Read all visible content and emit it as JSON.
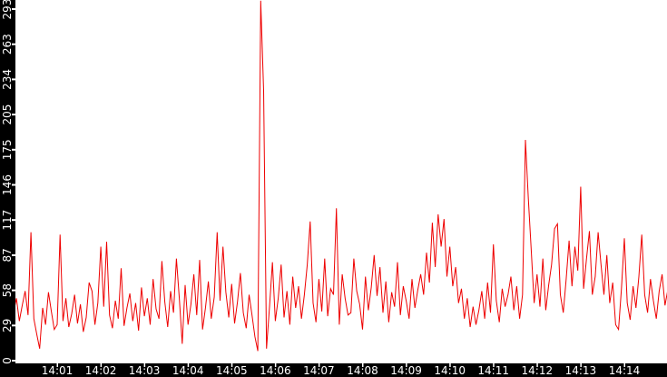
{
  "colors": {
    "plot_background": "#ffffff",
    "axis_band": "#000000",
    "tick_mark": "#ffffff",
    "tick_label": "#ffffff",
    "series_line": "#ee0000"
  },
  "chart_data": {
    "type": "line",
    "title": "",
    "xlabel": "",
    "ylabel": "",
    "grid": false,
    "legend": "none",
    "x_window": [
      "14:00",
      "14:15"
    ],
    "sample_interval_s": 4,
    "ylim": [
      0,
      300
    ],
    "x_tick_labels": [
      "14:01",
      "14:02",
      "14:03",
      "14:04",
      "14:05",
      "14:06",
      "14:07",
      "14:08",
      "14:09",
      "14:10",
      "14:11",
      "14:12",
      "14:13",
      "14:14"
    ],
    "y_tick_labels": [
      "0",
      "29",
      "58",
      "87",
      "117",
      "146",
      "175",
      "205",
      "234",
      "263",
      "293"
    ],
    "y_tick_values": [
      0,
      29.3,
      58.6,
      87.9,
      117.2,
      146.5,
      175.8,
      205.1,
      234.4,
      263.7,
      293
    ],
    "series": [
      {
        "name": "value",
        "color": "#ee0000",
        "start_time": "14:00:00",
        "interval_s": 4,
        "values": [
          40,
          52,
          33,
          46,
          58,
          38,
          107,
          35,
          22,
          10,
          44,
          30,
          57,
          41,
          26,
          30,
          105,
          33,
          52,
          28,
          39,
          55,
          31,
          47,
          24,
          36,
          65,
          58,
          30,
          48,
          95,
          45,
          99,
          38,
          27,
          50,
          35,
          77,
          29,
          44,
          56,
          33,
          48,
          25,
          61,
          37,
          52,
          30,
          68,
          43,
          35,
          83,
          49,
          28,
          58,
          40,
          85,
          52,
          14,
          63,
          30,
          47,
          72,
          38,
          84,
          26,
          44,
          66,
          35,
          53,
          107,
          50,
          95,
          57,
          36,
          64,
          31,
          49,
          73,
          40,
          27,
          55,
          38,
          20,
          8,
          300,
          225,
          10,
          45,
          82,
          33,
          52,
          80,
          36,
          58,
          30,
          70,
          44,
          62,
          35,
          55,
          80,
          116,
          48,
          32,
          68,
          41,
          85,
          37,
          60,
          55,
          127,
          30,
          72,
          52,
          38,
          40,
          85,
          58,
          47,
          26,
          70,
          42,
          61,
          88,
          54,
          78,
          40,
          66,
          32,
          57,
          45,
          82,
          38,
          62,
          50,
          35,
          68,
          44,
          59,
          72,
          55,
          90,
          65,
          115,
          78,
          122,
          95,
          118,
          70,
          95,
          62,
          78,
          48,
          60,
          35,
          52,
          28,
          45,
          30,
          42,
          58,
          35,
          65,
          40,
          97,
          50,
          32,
          60,
          45,
          55,
          70,
          42,
          62,
          35,
          55,
          184,
          135,
          92,
          48,
          72,
          45,
          85,
          42,
          63,
          80,
          110,
          114,
          55,
          40,
          68,
          100,
          62,
          95,
          75,
          145,
          60,
          85,
          108,
          55,
          70,
          107,
          80,
          55,
          88,
          48,
          65,
          30,
          26,
          60,
          102,
          48,
          34,
          62,
          44,
          70,
          105,
          55,
          40,
          68,
          50,
          35,
          58,
          72,
          46,
          60
        ]
      }
    ]
  }
}
